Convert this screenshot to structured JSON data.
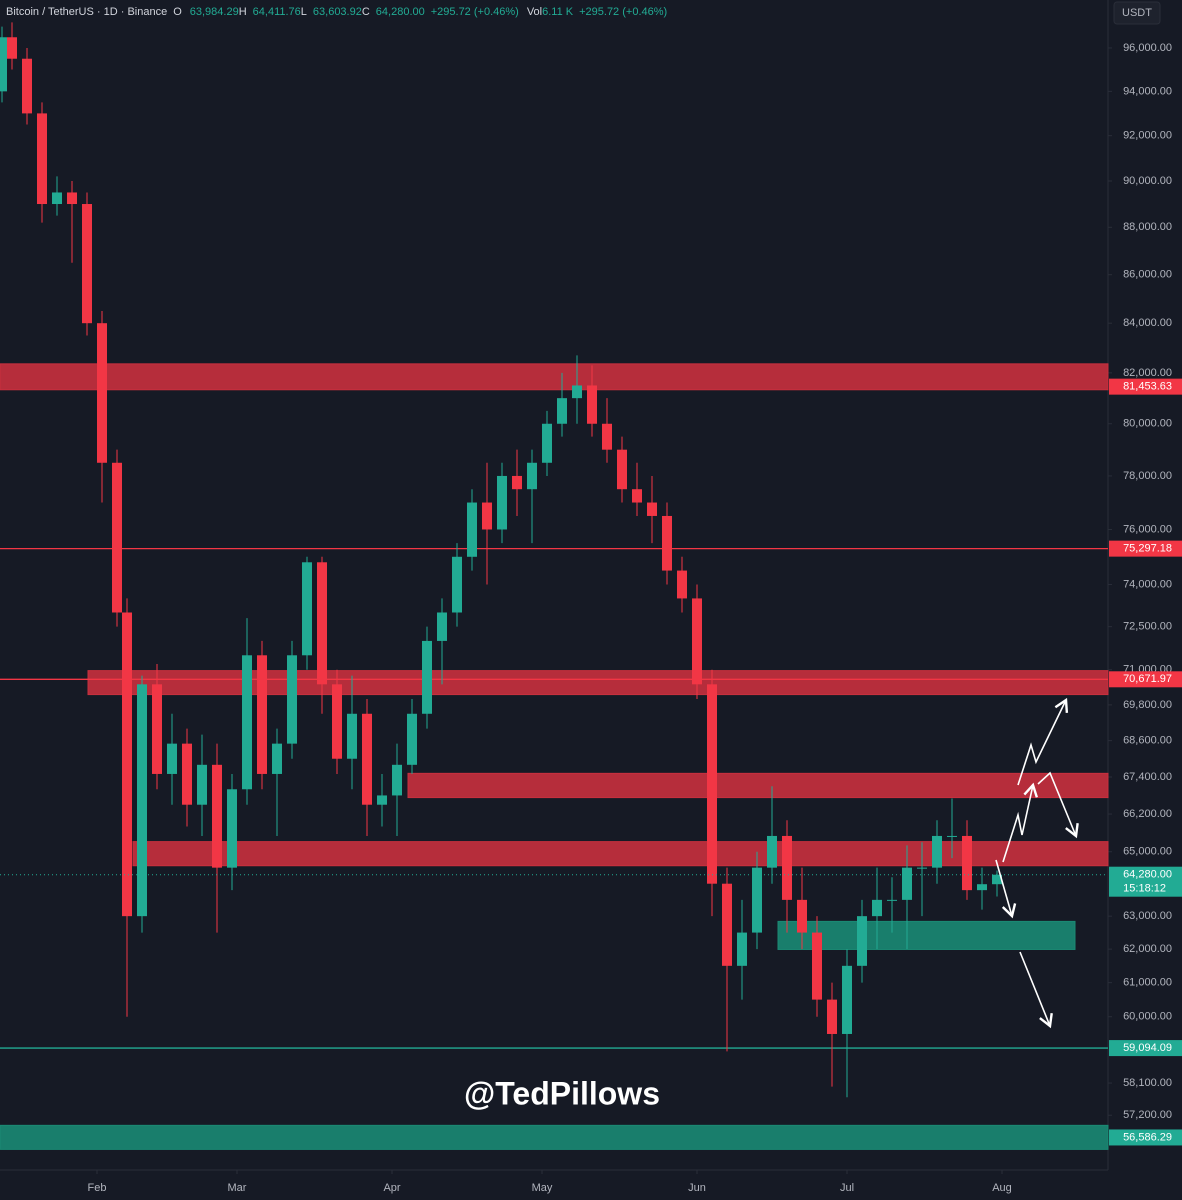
{
  "chart_data": {
    "type": "candlestick",
    "header": {
      "symbol": "Bitcoin / TetherUS · 1D · Binance",
      "o_key": "O",
      "o": "63,984.29",
      "h_key": "H",
      "h": "64,411.76",
      "l_key": "L",
      "l": "63,603.92",
      "c_key": "C",
      "c": "64,280.00",
      "change": "+295.72 (+0.46%)",
      "vol_key": "Vol",
      "vol": "6.11 K",
      "vol_change": "+295.72 (+0.46%)"
    },
    "currency": "USDT",
    "watermark": "@TedPillows",
    "log_scale": true,
    "up_color": "#22ab94",
    "down_color": "#f23645",
    "xlim": [
      12.6,
      234.2
    ],
    "ylim": [
      55700,
      98260
    ],
    "xticks": [
      {
        "value": 32,
        "label": "Feb"
      },
      {
        "value": 60,
        "label": "Mar"
      },
      {
        "value": 91,
        "label": "Apr"
      },
      {
        "value": 121,
        "label": "May"
      },
      {
        "value": 152,
        "label": "Jun"
      },
      {
        "value": 182,
        "label": "Jul"
      },
      {
        "value": 213,
        "label": "Aug"
      }
    ],
    "yticks": [
      {
        "value": 96000,
        "label": "96,000.00"
      },
      {
        "value": 94000,
        "label": "94,000.00"
      },
      {
        "value": 92000,
        "label": "92,000.00"
      },
      {
        "value": 90000,
        "label": "90,000.00"
      },
      {
        "value": 88000,
        "label": "88,000.00"
      },
      {
        "value": 86000,
        "label": "86,000.00"
      },
      {
        "value": 84000,
        "label": "84,000.00"
      },
      {
        "value": 82000,
        "label": "82,000.00"
      },
      {
        "value": 80000,
        "label": "80,000.00"
      },
      {
        "value": 78000,
        "label": "78,000.00"
      },
      {
        "value": 76000,
        "label": "76,000.00"
      },
      {
        "value": 74000,
        "label": "74,000.00"
      },
      {
        "value": 72500,
        "label": "72,500.00"
      },
      {
        "value": 71000,
        "label": "71,000.00"
      },
      {
        "value": 69800,
        "label": "69,800.00"
      },
      {
        "value": 68600,
        "label": "68,600.00"
      },
      {
        "value": 67400,
        "label": "67,400.00"
      },
      {
        "value": 66200,
        "label": "66,200.00"
      },
      {
        "value": 65000,
        "label": "65,000.00"
      },
      {
        "value": 63000,
        "label": "63,000.00"
      },
      {
        "value": 62000,
        "label": "62,000.00"
      },
      {
        "value": 61000,
        "label": "61,000.00"
      },
      {
        "value": 60000,
        "label": "60,000.00"
      },
      {
        "value": 58100,
        "label": "58,100.00"
      },
      {
        "value": 57200,
        "label": "57,200.00"
      }
    ],
    "candles": {
      "x": [
        13,
        15,
        18,
        21,
        24,
        27,
        30,
        33,
        36,
        38,
        41,
        44,
        47,
        50,
        53,
        56,
        59,
        62,
        65,
        68,
        71,
        74,
        77,
        80,
        83,
        86,
        89,
        92,
        95,
        98,
        101,
        104,
        107,
        110,
        113,
        116,
        119,
        122,
        125,
        128,
        131,
        134,
        137,
        140,
        143,
        146,
        149,
        152,
        155,
        158,
        161,
        164,
        167,
        170,
        173,
        176,
        179,
        182,
        185,
        188,
        191,
        194,
        197,
        200,
        203,
        206,
        209,
        212
      ],
      "open": [
        94000,
        96500,
        95500,
        93000,
        89000,
        89500,
        89000,
        84000,
        78500,
        73000,
        63000,
        70500,
        67500,
        68500,
        66500,
        67800,
        64500,
        67000,
        71500,
        67500,
        68500,
        71500,
        74800,
        70500,
        68000,
        69500,
        66500,
        66800,
        67800,
        69500,
        72000,
        73000,
        75000,
        77000,
        76000,
        78000,
        77500,
        78500,
        80000,
        81000,
        81500,
        80000,
        79000,
        77500,
        77000,
        76500,
        74500,
        73500,
        70500,
        64000,
        61500,
        62500,
        64500,
        65500,
        63500,
        62500,
        60500,
        59500,
        61500,
        63000,
        63500,
        63500,
        64500,
        64500,
        65500,
        65500,
        63800,
        63984.29
      ],
      "high": [
        97000,
        97200,
        96000,
        93500,
        90200,
        90000,
        89500,
        84500,
        79000,
        73500,
        70800,
        71200,
        69500,
        69000,
        68800,
        68500,
        67500,
        72800,
        72000,
        69000,
        72000,
        75000,
        75000,
        71000,
        70800,
        70000,
        67500,
        68500,
        70000,
        72500,
        73500,
        75500,
        77500,
        78500,
        78500,
        79000,
        79000,
        80500,
        82000,
        82700,
        82300,
        81000,
        79500,
        78500,
        78000,
        77000,
        75000,
        74000,
        71000,
        64500,
        63500,
        65000,
        67100,
        66000,
        64500,
        63000,
        61000,
        62000,
        63500,
        64500,
        64200,
        65200,
        65300,
        66000,
        66700,
        66000,
        64500,
        64411.76
      ],
      "low": [
        93500,
        95000,
        92500,
        88200,
        88500,
        86500,
        83500,
        77000,
        72500,
        60000,
        62500,
        67000,
        66500,
        65800,
        65500,
        62500,
        63800,
        66500,
        67000,
        65500,
        68000,
        71000,
        69500,
        67500,
        67000,
        65500,
        65800,
        65500,
        67500,
        69000,
        70500,
        72500,
        74500,
        74000,
        75500,
        76500,
        75500,
        78000,
        79500,
        80000,
        79500,
        78500,
        77000,
        76500,
        75500,
        74000,
        73000,
        70000,
        63000,
        59000,
        60500,
        62000,
        64000,
        62500,
        62000,
        60000,
        58000,
        57700,
        61000,
        62000,
        62500,
        62000,
        63000,
        64000,
        64800,
        63500,
        63200,
        63603.92
      ],
      "close": [
        96500,
        95500,
        93000,
        89000,
        89500,
        89000,
        84000,
        78500,
        73000,
        63000,
        70500,
        67500,
        68500,
        66500,
        67800,
        64500,
        67000,
        71500,
        67500,
        68500,
        71500,
        74800,
        70500,
        68000,
        69500,
        66500,
        66800,
        67800,
        69500,
        72000,
        73000,
        75000,
        77000,
        76000,
        78000,
        77500,
        78500,
        80000,
        81000,
        81500,
        80000,
        79000,
        77500,
        77000,
        76500,
        74500,
        73500,
        70500,
        64000,
        61500,
        62500,
        64500,
        65500,
        63500,
        62500,
        60500,
        59500,
        61500,
        63000,
        63500,
        63500,
        64500,
        64500,
        65500,
        65500,
        63800,
        63984.29,
        64280
      ]
    },
    "zones": [
      {
        "from": 81330,
        "to": 82360,
        "x_start": 12.6,
        "x_end": 234.2,
        "color": "#c8303e"
      },
      {
        "from": 70150,
        "to": 70970,
        "x_start": 30.2,
        "x_end": 234.2,
        "color": "#c8303e"
      },
      {
        "from": 66730,
        "to": 67520,
        "x_start": 94.2,
        "x_end": 234.2,
        "color": "#c8303e"
      },
      {
        "from": 64560,
        "to": 65320,
        "x_start": 39.2,
        "x_end": 234.2,
        "color": "#c8303e"
      },
      {
        "from": 61990,
        "to": 62840,
        "x_start": 168.2,
        "x_end": 227.6,
        "color": "#1a8a74"
      },
      {
        "from": 56260,
        "to": 56920,
        "x_start": 12.6,
        "x_end": 234.2,
        "color": "#1a8a74"
      }
    ],
    "levels": [
      {
        "value": 81453.63,
        "label": "81,453.63",
        "color": "#f23645",
        "line": false
      },
      {
        "value": 75297.18,
        "label": "75,297.18",
        "color": "#f23645",
        "line": true
      },
      {
        "value": 70671.97,
        "label": "70,671.97",
        "color": "#f23645",
        "line": true
      },
      {
        "value": 59094.09,
        "label": "59,094.09",
        "color": "#22ab94",
        "line": true
      },
      {
        "value": 56586.29,
        "label": "56,586.29",
        "color": "#22ab94",
        "line": false
      }
    ],
    "last_price": {
      "value": 64280,
      "label": "64,280.00",
      "countdown": "15:18:12",
      "color": "#22ab94"
    }
  }
}
